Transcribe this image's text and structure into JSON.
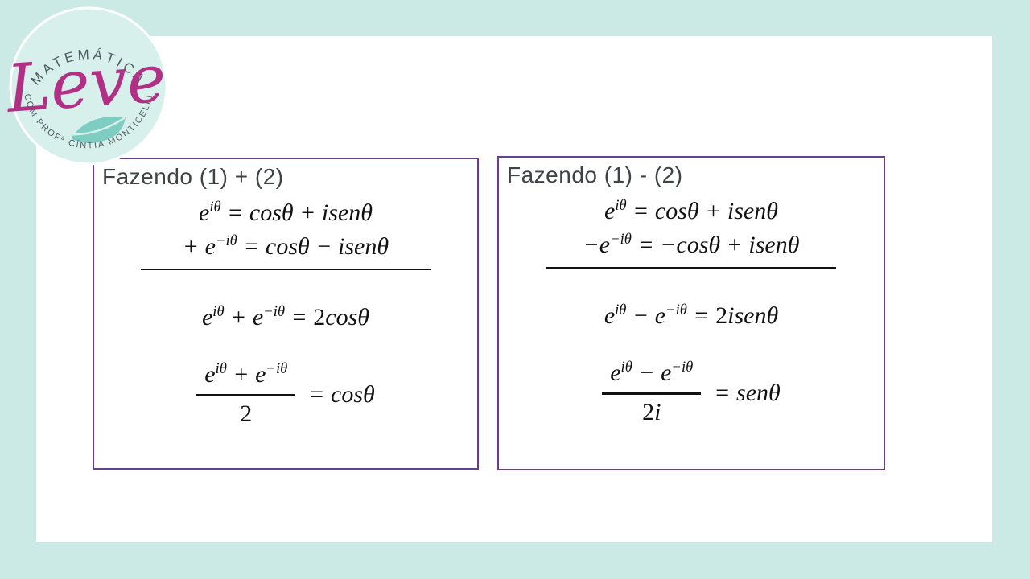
{
  "slide": {
    "colors": {
      "background": "#cbe9e5",
      "panel": "#ffffff",
      "box_border": "#6a3d8f",
      "logo_circle": "#d8f0ec",
      "logo_script": "#b13086",
      "logo_feather": "#7ecdc3",
      "logo_arc_text": "#4d5d5f",
      "title_text": "#3f4345",
      "math_text": "#111111"
    },
    "logo": {
      "top_text": "MATEMÁTICA",
      "script_text": "Leve",
      "bottom_text": "COM PROFª CÍNTIA MONTICELLI",
      "feather_icon": "feather-icon"
    },
    "left_box": {
      "title": "Fazendo (1) + (2)",
      "eq1": [
        {
          "x": "e"
        },
        {
          "s": "iθ"
        },
        {
          "x": " = cosθ + isenθ"
        }
      ],
      "eq2": [
        {
          "x": "+ e"
        },
        {
          "s": "−iθ"
        },
        {
          "x": " = cosθ − isenθ"
        }
      ],
      "eq3": [
        {
          "x": "e"
        },
        {
          "s": "iθ"
        },
        {
          "x": " + e"
        },
        {
          "s": "−iθ"
        },
        {
          "x": " = "
        },
        {
          "u": "2"
        },
        {
          "x": "cosθ"
        }
      ],
      "fraction": {
        "numerator": [
          {
            "x": "e"
          },
          {
            "s": "iθ"
          },
          {
            "x": " + e"
          },
          {
            "s": "−iθ"
          }
        ],
        "denominator": [
          {
            "u": "2"
          }
        ],
        "rhs": [
          {
            "x": "= cosθ"
          }
        ]
      }
    },
    "right_box": {
      "title": "Fazendo (1) - (2)",
      "eq1": [
        {
          "x": "e"
        },
        {
          "s": "iθ"
        },
        {
          "x": " = cosθ + isenθ"
        }
      ],
      "eq2": [
        {
          "x": "−e"
        },
        {
          "s": "−iθ"
        },
        {
          "x": " = −cosθ + isenθ"
        }
      ],
      "eq3": [
        {
          "x": "e"
        },
        {
          "s": "iθ"
        },
        {
          "x": " − e"
        },
        {
          "s": "−iθ"
        },
        {
          "x": " = "
        },
        {
          "u": "2"
        },
        {
          "x": "isenθ"
        }
      ],
      "fraction": {
        "numerator": [
          {
            "x": "e"
          },
          {
            "s": "iθ"
          },
          {
            "x": " − e"
          },
          {
            "s": "−iθ"
          }
        ],
        "denominator": [
          {
            "u": "2"
          },
          {
            "x": "i"
          }
        ],
        "rhs": [
          {
            "x": "= senθ"
          }
        ]
      }
    }
  }
}
